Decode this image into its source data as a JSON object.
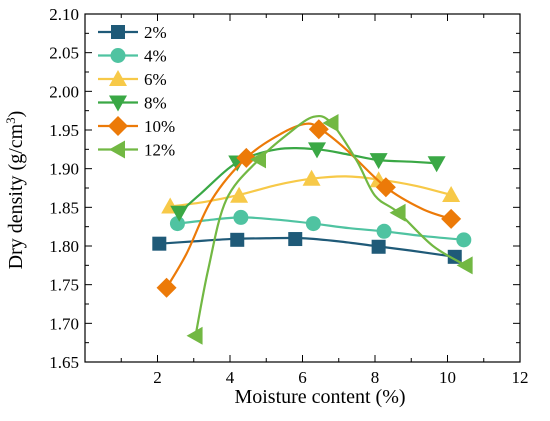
{
  "chart_data": {
    "type": "line",
    "title": "",
    "xlabel": "Moisture content (%)",
    "ylabel_main": "Dry density (g/cm",
    "ylabel_sup": "3",
    "ylabel_tail": ")",
    "xlim": [
      0,
      12
    ],
    "ylim": [
      1.65,
      2.1
    ],
    "xticks": [
      2,
      4,
      6,
      8,
      10,
      12
    ],
    "xtick_labels": [
      "2",
      "4",
      "6",
      "8",
      "10",
      "12"
    ],
    "yticks": [
      1.65,
      1.7,
      1.75,
      1.8,
      1.85,
      1.9,
      1.95,
      2.0,
      2.05,
      2.1
    ],
    "ytick_labels": [
      "1.65",
      "1.70",
      "1.75",
      "1.80",
      "1.85",
      "1.90",
      "1.95",
      "2.00",
      "2.05",
      "2.10"
    ],
    "grid": false,
    "legend_position": "top-left",
    "series": [
      {
        "name": "2%",
        "marker": "square",
        "color": "#1f5a78",
        "points": [
          [
            2.05,
            1.803
          ],
          [
            4.2,
            1.808
          ],
          [
            5.8,
            1.809
          ],
          [
            8.1,
            1.799
          ],
          [
            10.2,
            1.786
          ]
        ],
        "curve": [
          [
            2.05,
            1.803
          ],
          [
            3.0,
            1.806
          ],
          [
            4.0,
            1.809
          ],
          [
            5.0,
            1.81
          ],
          [
            6.0,
            1.81
          ],
          [
            7.0,
            1.806
          ],
          [
            8.0,
            1.8
          ],
          [
            9.0,
            1.794
          ],
          [
            10.2,
            1.786
          ]
        ]
      },
      {
        "name": "4%",
        "marker": "circle",
        "color": "#4fc3a1",
        "points": [
          [
            2.55,
            1.829
          ],
          [
            4.3,
            1.837
          ],
          [
            6.3,
            1.829
          ],
          [
            8.25,
            1.819
          ],
          [
            10.45,
            1.808
          ]
        ],
        "curve": [
          [
            2.55,
            1.829
          ],
          [
            3.3,
            1.833
          ],
          [
            4.3,
            1.837
          ],
          [
            5.3,
            1.834
          ],
          [
            6.3,
            1.829
          ],
          [
            7.3,
            1.823
          ],
          [
            8.25,
            1.819
          ],
          [
            9.3,
            1.813
          ],
          [
            10.45,
            1.808
          ]
        ]
      },
      {
        "name": "6%",
        "marker": "triangle-up",
        "color": "#f7c948",
        "points": [
          [
            2.35,
            1.851
          ],
          [
            4.25,
            1.865
          ],
          [
            6.25,
            1.887
          ],
          [
            8.1,
            1.885
          ],
          [
            10.1,
            1.866
          ]
        ],
        "curve": [
          [
            2.35,
            1.851
          ],
          [
            3.3,
            1.857
          ],
          [
            4.25,
            1.866
          ],
          [
            5.3,
            1.879
          ],
          [
            6.25,
            1.887
          ],
          [
            7.2,
            1.89
          ],
          [
            8.1,
            1.886
          ],
          [
            9.1,
            1.878
          ],
          [
            10.1,
            1.866
          ]
        ]
      },
      {
        "name": "8%",
        "marker": "triangle-down",
        "color": "#3aa845",
        "points": [
          [
            2.6,
            1.843
          ],
          [
            4.2,
            1.908
          ],
          [
            6.4,
            1.925
          ],
          [
            8.1,
            1.911
          ],
          [
            9.7,
            1.907
          ]
        ],
        "curve": [
          [
            2.6,
            1.843
          ],
          [
            3.2,
            1.868
          ],
          [
            4.2,
            1.908
          ],
          [
            5.3,
            1.925
          ],
          [
            6.4,
            1.925
          ],
          [
            7.3,
            1.918
          ],
          [
            8.1,
            1.911
          ],
          [
            9.0,
            1.909
          ],
          [
            9.7,
            1.907
          ]
        ]
      },
      {
        "name": "10%",
        "marker": "diamond",
        "color": "#ec7a08",
        "points": [
          [
            2.25,
            1.746
          ],
          [
            4.45,
            1.914
          ],
          [
            6.45,
            1.951
          ],
          [
            8.3,
            1.876
          ],
          [
            10.1,
            1.835
          ]
        ],
        "curve": [
          [
            2.25,
            1.746
          ],
          [
            2.8,
            1.79
          ],
          [
            3.5,
            1.86
          ],
          [
            4.45,
            1.914
          ],
          [
            5.4,
            1.945
          ],
          [
            6.1,
            1.958
          ],
          [
            6.5,
            1.951
          ],
          [
            7.2,
            1.925
          ],
          [
            8.3,
            1.876
          ],
          [
            9.3,
            1.848
          ],
          [
            10.1,
            1.835
          ]
        ]
      },
      {
        "name": "12%",
        "marker": "triangle-left",
        "color": "#72b843",
        "points": [
          [
            3.05,
            1.684
          ],
          [
            4.8,
            1.912
          ],
          [
            6.8,
            1.959
          ],
          [
            8.65,
            1.843
          ],
          [
            10.5,
            1.775
          ]
        ],
        "curve": [
          [
            3.05,
            1.684
          ],
          [
            3.4,
            1.77
          ],
          [
            3.9,
            1.86
          ],
          [
            4.8,
            1.912
          ],
          [
            5.6,
            1.945
          ],
          [
            6.3,
            1.967
          ],
          [
            6.8,
            1.959
          ],
          [
            7.5,
            1.91
          ],
          [
            8.0,
            1.865
          ],
          [
            8.65,
            1.843
          ],
          [
            9.6,
            1.8
          ],
          [
            10.5,
            1.775
          ]
        ]
      }
    ]
  }
}
